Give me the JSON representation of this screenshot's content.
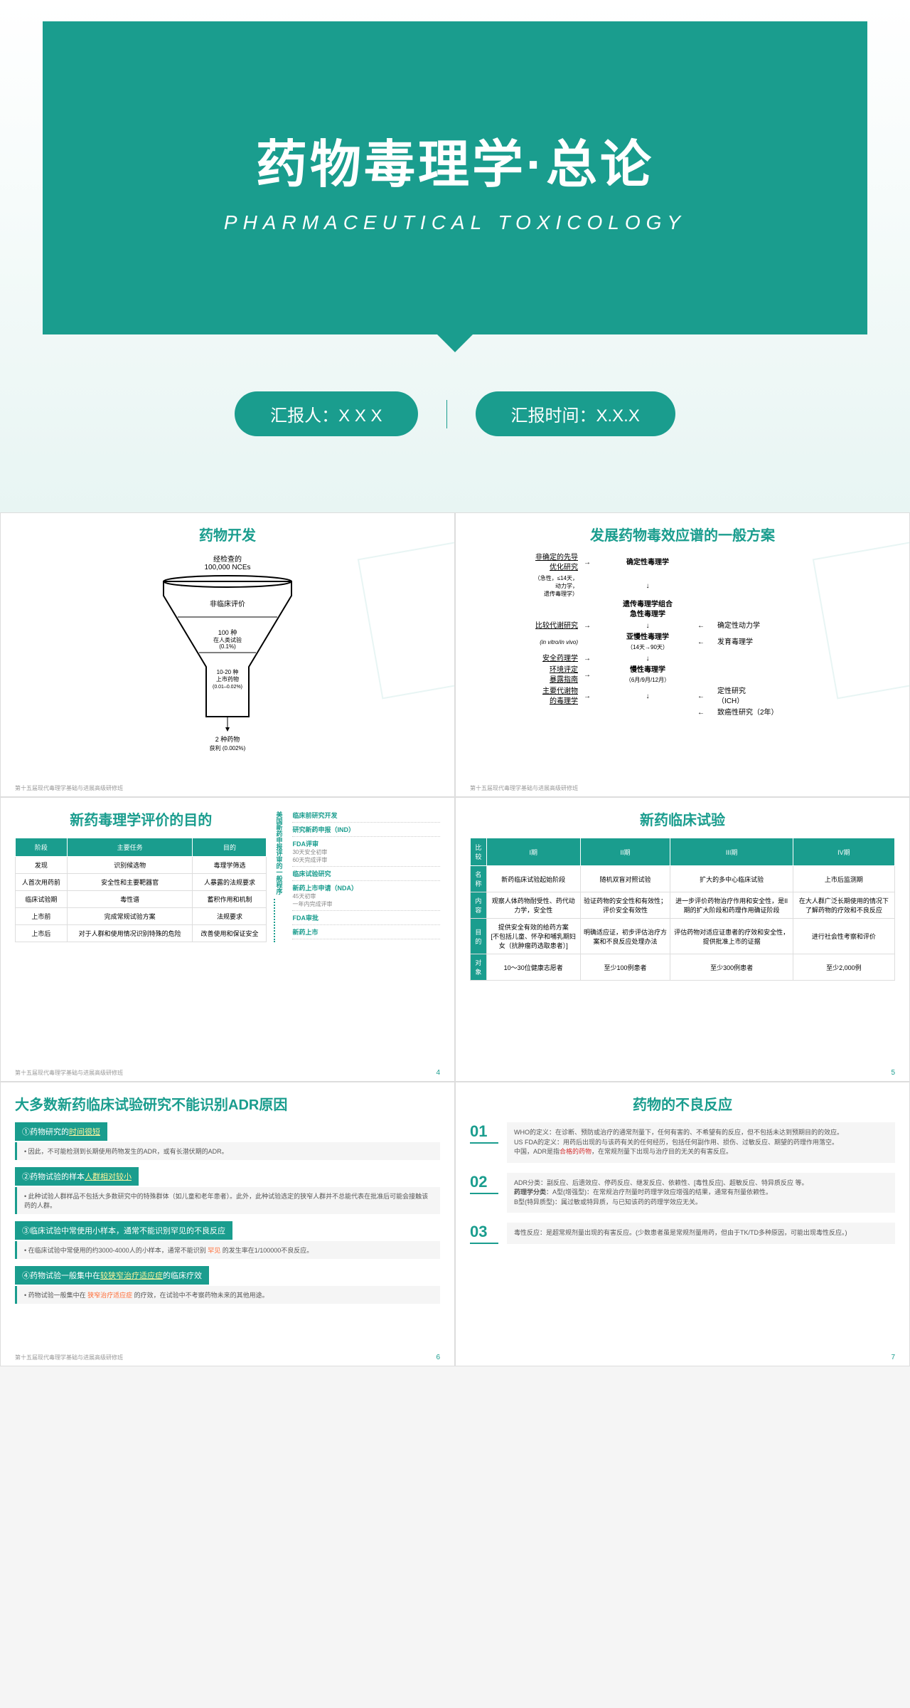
{
  "colors": {
    "primary": "#1a9d8e",
    "bg": "#ffffff",
    "text": "#333333",
    "muted": "#999999",
    "highlight": "#ff6b35",
    "red": "#d32f2f"
  },
  "slide1": {
    "title": "药物毒理学·总论",
    "subtitle": "PHARMACEUTICAL  TOXICOLOGY",
    "reporter_label": "汇报人：X X X",
    "time_label": "汇报时间：X.X.X"
  },
  "slide2": {
    "title": "药物开发",
    "top_label": "经检查的\n100,000 NCEs",
    "levels": [
      {
        "label": "非临床评价",
        "sub": ""
      },
      {
        "label": "100 种",
        "sub": "在人类试验\n(0.1%)"
      },
      {
        "label": "10-20 种",
        "sub": "上市药物\n(0.01–0.02%)"
      },
      {
        "label": "2 种药物",
        "sub": "获利 (0.002%)"
      }
    ],
    "footer": "第十五届现代毒理学基础与进展高级研修班"
  },
  "slide3": {
    "title": "发展药物毒效应谱的一般方案",
    "rows": [
      {
        "left": "非确定的先导\n优化研究\n（急性，≤14天，\n动力学，\n遗传毒理学）",
        "center": "确定性毒理学",
        "right": ""
      },
      {
        "left": "",
        "center": "遗传毒理学组合\n急性毒理学",
        "right": ""
      },
      {
        "left": "比较代谢研究\n(in vitro/in vivo)",
        "center": "",
        "right": "确定性动力学"
      },
      {
        "left": "",
        "center": "亚慢性毒理学\n（14天→90天）",
        "right": "发育毒理学"
      },
      {
        "left": "安全药理学",
        "center": "",
        "right": ""
      },
      {
        "left": "环境评定\n暴露指南",
        "center": "慢性毒理学\n（6月/9月/12月）",
        "right": ""
      },
      {
        "left": "主要代谢物\n的毒理学",
        "center": "",
        "right": "定性研究\n（ICH）"
      },
      {
        "left": "",
        "center": "",
        "right": "致癌性研究（2年）"
      }
    ],
    "footer": "第十五届现代毒理学基础与进展高级研修班"
  },
  "slide4": {
    "title": "新药毒理学评价的目的",
    "vert": "美国新药申报评审的一般程序",
    "table": {
      "headers": [
        "阶段",
        "主要任务",
        "目的"
      ],
      "rows": [
        [
          "发现",
          "识别候选物",
          "毒理学筛选"
        ],
        [
          "人首次用药前",
          "安全性和主要靶器官",
          "人暴露的法规要求"
        ],
        [
          "临床试验期",
          "毒性谱",
          "蓄积作用和机制"
        ],
        [
          "上市前",
          "完成常规试验方案",
          "法规要求"
        ],
        [
          "上市后",
          "对于人群和使用情况识别特殊的危险",
          "改善使用和保证安全"
        ]
      ]
    },
    "process": [
      {
        "t": "临床前研究开发",
        "s": ""
      },
      {
        "t": "研究新药申报（IND）",
        "s": ""
      },
      {
        "t": "FDA评审",
        "s": "30天安全初审\n60天完成评审"
      },
      {
        "t": "临床试验研究",
        "s": ""
      },
      {
        "t": "新药上市申请（NDA）",
        "s": "45天初审\n一年内完成评审"
      },
      {
        "t": "FDA审批",
        "s": ""
      },
      {
        "t": "新药上市",
        "s": ""
      }
    ],
    "footer": "第十五届现代毒理学基础与进展高级研修班",
    "page": "4"
  },
  "slide5": {
    "title": "新药临床试验",
    "table": {
      "headers": [
        "比较",
        "I期",
        "II期",
        "III期",
        "IV期"
      ],
      "rows": [
        [
          "名称",
          "新药临床试验起始阶段",
          "随机双盲对照试验",
          "扩大的多中心临床试验",
          "上市后监测期"
        ],
        [
          "内容",
          "观察人体药物耐受性、药代动力学，安全性",
          "验证药物的安全性和有效性；评价安全有效性",
          "进一步评价药物治疗作用和安全性，是II期的扩大阶段和药理作用确证阶段",
          "在大人群广泛长期使用的情况下了解药物的疗效和不良反应"
        ],
        [
          "目的",
          "提供安全有效的给药方案\n[不包括儿童、怀孕和哺乳期妇女（抗肿瘤药选取患者）]",
          "明确适应证，初步评估治疗方案和不良反应处理办法",
          "评估药物对适应证患者的疗效和安全性，提供批准上市的证据",
          "进行社会性考察和评价"
        ],
        [
          "对象",
          "10～30位健康志愿者",
          "至少100例患者",
          "至少300例患者",
          "至少2,000例"
        ]
      ]
    },
    "page": "5"
  },
  "slide6": {
    "title": "大多数新药临床试验研究不能识别ADR原因",
    "items": [
      {
        "h": "①药物研究的",
        "u": "时间很短",
        "b": "• 因此，不可能检测到长期使用药物发生的ADR，或有长潜伏期的ADR。"
      },
      {
        "h": "②药物试验的样本",
        "u": "人群相对较小",
        "b": "• 此种试验人群样品不包括大多数研究中的特殊群体（如儿童和老年患者）。此外，此种试验选定的狭窄人群并不总能代表在批准后可能会接触该药的人群。"
      },
      {
        "h": "③临床试验中常使用小样本，通常不能识别罕见的不良反应",
        "u": "",
        "b": "• 在临床试验中常使用的约3000-4000人的小样本，通常不能识别 罕见 的发生率在1/100000不良反应。"
      },
      {
        "h": "④药物试验一般集中在",
        "u": "较狭窄治疗适应症",
        "h2": "的临床疗效",
        "b": "• 药物试验一般集中在 狭窄治疗适应症 的疗效，在试验中不考察药物未来的其他用途。"
      }
    ],
    "footer": "第十五届现代毒理学基础与进展高级研修班",
    "page": "6"
  },
  "slide7": {
    "title": "药物的不良反应",
    "items": [
      {
        "n": "01",
        "t": "WHO的定义：在诊断、预防或治疗的通常剂量下，任何有害的、不希望有的反应，但不包括未达到预期目的的效应。\nUS FDA的定义：用药后出现的与该药有关的任何经历，包括任何副作用、损伤、过敏反应、期望的药理作用落空。\n中国，ADR是指<span class='red'>合格的药物</span>，在常规剂量下出现与治疗目的无关的有害反应。"
      },
      {
        "n": "02",
        "t": "ADR分类：副反应、后遗效应、停药反应、继发反应、依赖性、[毒性反应]、超敏反应、特异质反应 等。\n<b>药理学分类</b>：A型(增强型)：在常规治疗剂量时药理学效应增强的结果，通常有剂量依赖性。\nB型(特异质型)：属过敏或特异质，与已知该药的药理学效应无关。"
      },
      {
        "n": "03",
        "t": "毒性反应：是超常规剂量出现的有害反应。(少数患者虽是常规剂量用药，但由于TK/TD多种原因，可能出现毒性反应。)"
      }
    ],
    "page": "7"
  }
}
